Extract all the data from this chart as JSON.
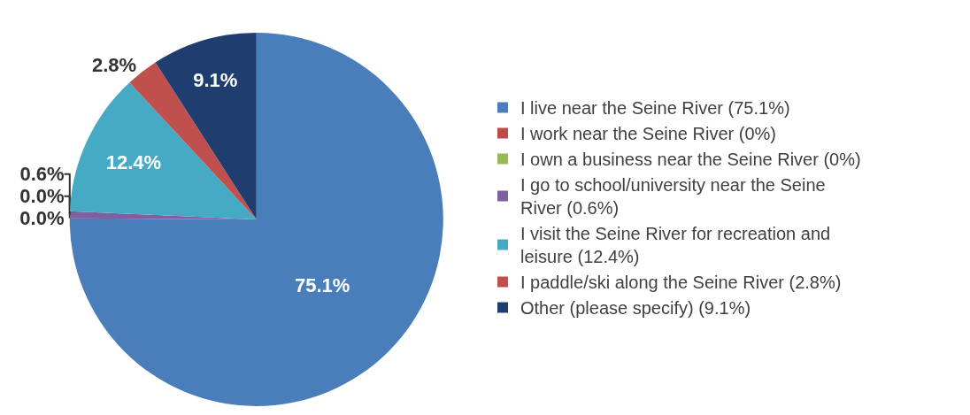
{
  "chart_data": {
    "type": "pie",
    "categories": [
      "I live near the Seine River (75.1%)",
      "I work near the Seine River (0%)",
      "I own a business near the Seine River (0%)",
      "I go to school/university near the Seine River (0.6%)",
      "I visit the Seine River for recreation and leisure (12.4%)",
      "I paddle/ski along the Seine River (2.8%)",
      "Other (please specify) (9.1%)"
    ],
    "values": [
      75.1,
      0,
      0,
      0.6,
      12.4,
      2.8,
      9.1
    ],
    "colors": [
      "#4a7ebb",
      "#be4b48",
      "#98b954",
      "#7d60a0",
      "#46aac5",
      "#c0504d",
      "#1f3d6e"
    ],
    "value_labels": [
      "75.1%",
      "0.0%",
      "0.0%",
      "0.6%",
      "12.4%",
      "2.8%",
      "9.1%"
    ],
    "legend": "right"
  }
}
